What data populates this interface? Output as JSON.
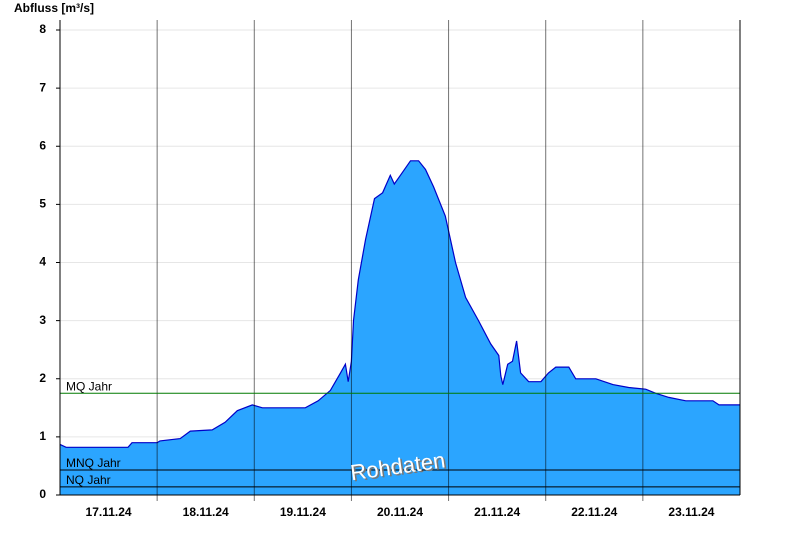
{
  "chart_data": {
    "type": "area",
    "y_label": "Abfluss [m³/s]",
    "watermark": "Rohdaten",
    "color": "#2ba5ff",
    "line_color": "#0000c8",
    "x": [
      0,
      1.5,
      16.8,
      17.8,
      24,
      24.7,
      29.7,
      32.2,
      37.6,
      40.8,
      43.8,
      47.5,
      50,
      60.6,
      63.8,
      66.8,
      69.3,
      70.5,
      71.2,
      72,
      72.5,
      73.7,
      75.5,
      77.7,
      79.7,
      81.6,
      82.6,
      84.1,
      86.6,
      88.6,
      90.3,
      92.3,
      95.2,
      97.7,
      100.2,
      103.4,
      106.4,
      108.4,
      108.9,
      109.4,
      110.6,
      111.8,
      112.8,
      113.8,
      115.8,
      118.8,
      120.7,
      122.5,
      125.7,
      127.4,
      132.4,
      136.6,
      140.5,
      144.7,
      147.2,
      150.4,
      154.6,
      161.3,
      162.8,
      168
    ],
    "values": [
      0.87,
      0.82,
      0.82,
      0.9,
      0.9,
      0.93,
      0.97,
      1.1,
      1.12,
      1.25,
      1.45,
      1.55,
      1.5,
      1.5,
      1.62,
      1.8,
      2.1,
      2.25,
      1.95,
      2.3,
      3.0,
      3.7,
      4.4,
      5.1,
      5.2,
      5.5,
      5.35,
      5.5,
      5.75,
      5.75,
      5.6,
      5.3,
      4.8,
      4.0,
      3.4,
      3.0,
      2.6,
      2.4,
      2.05,
      1.9,
      2.25,
      2.3,
      2.65,
      2.1,
      1.95,
      1.95,
      2.1,
      2.2,
      2.2,
      2.0,
      2.0,
      1.9,
      1.85,
      1.82,
      1.75,
      1.68,
      1.62,
      1.62,
      1.55,
      1.55
    ],
    "xlim": [
      0,
      168
    ],
    "xticks": [
      {
        "value": 12,
        "label": "17.11.24"
      },
      {
        "value": 36,
        "label": "18.11.24"
      },
      {
        "value": 60,
        "label": "19.11.24"
      },
      {
        "value": 84,
        "label": "20.11.24"
      },
      {
        "value": 108,
        "label": "21.11.24"
      },
      {
        "value": 132,
        "label": "22.11.24"
      },
      {
        "value": 156,
        "label": "23.11.24"
      }
    ],
    "day_lines": [
      24,
      48,
      72,
      96,
      120,
      144
    ],
    "ylim": [
      0,
      8
    ],
    "yticks": [
      0,
      1,
      2,
      3,
      4,
      5,
      6,
      7,
      8
    ],
    "grid": true,
    "reference_lines": [
      {
        "label": "MQ Jahr",
        "value": 1.75,
        "color": "#007a00"
      },
      {
        "label": "MNQ Jahr",
        "value": 0.43,
        "color": "#000000"
      },
      {
        "label": "NQ Jahr",
        "value": 0.14,
        "color": "#000000"
      }
    ]
  }
}
